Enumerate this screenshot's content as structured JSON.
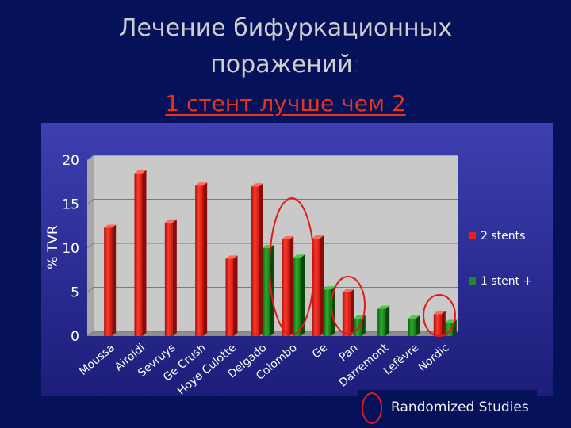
{
  "header": {
    "line1": "Лечение бифуркационных",
    "line2": "поражений",
    "line2_colon": ":",
    "line3": "1 стент лучше чем 2"
  },
  "badge": {
    "label": "Randomized Studies"
  },
  "chart_data": {
    "type": "bar",
    "ylabel": "% TVR",
    "ylim": [
      0,
      20
    ],
    "yticks": [
      0,
      5,
      10,
      15,
      20
    ],
    "categories": [
      "Moussa",
      "Airoldi",
      "Sevruys",
      "Ge Crush",
      "Hoye Culotte",
      "Delgado",
      "Colombo",
      "Ge",
      "Pan",
      "Darremont",
      "Lefèvre",
      "Nordic"
    ],
    "series": [
      {
        "name": "2 stents",
        "color": "#e8211a",
        "values": [
          12.3,
          18.5,
          12.9,
          17.1,
          8.8,
          17.0,
          11.0,
          11.1,
          5.0,
          null,
          null,
          2.5
        ]
      },
      {
        "name": "1 stent +",
        "color": "#1f8a1f",
        "values": [
          null,
          null,
          null,
          null,
          null,
          10.0,
          8.9,
          5.3,
          2.0,
          3.1,
          2.0,
          1.5
        ]
      }
    ],
    "legend_position": "right",
    "grid": true,
    "highlight_circles": [
      "Colombo",
      "Pan",
      "Nordic"
    ],
    "highlight_color": "#e0191a"
  }
}
